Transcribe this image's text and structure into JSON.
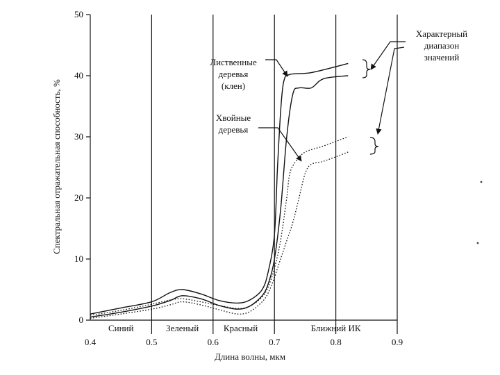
{
  "chart_data": {
    "type": "line",
    "xlabel": "Длина волны, мкм",
    "ylabel": "Спектральная отражательная способность, %",
    "xlim": [
      0.4,
      0.9
    ],
    "ylim": [
      0,
      50
    ],
    "x_ticks": [
      {
        "value": 0.4,
        "label": "0.4"
      },
      {
        "value": 0.5,
        "label": "0.5"
      },
      {
        "value": 0.6,
        "label": "0.6"
      },
      {
        "value": 0.7,
        "label": "0.7"
      },
      {
        "value": 0.8,
        "label": "0.8"
      },
      {
        "value": 0.9,
        "label": "0.9"
      }
    ],
    "y_ticks": [
      {
        "value": 0,
        "label": "0"
      },
      {
        "value": 10,
        "label": "10"
      },
      {
        "value": 20,
        "label": "20"
      },
      {
        "value": 30,
        "label": "30"
      },
      {
        "value": 40,
        "label": "40"
      },
      {
        "value": 50,
        "label": "50"
      }
    ],
    "band_boundaries": [
      0.5,
      0.6,
      0.7,
      0.8,
      0.9
    ],
    "bands": [
      {
        "label": "Синий",
        "center": 0.45
      },
      {
        "label": "Зеленый",
        "center": 0.55
      },
      {
        "label": "Красный",
        "center": 0.645
      },
      {
        "label": "Ближний ИК",
        "center": 0.8
      }
    ],
    "series": [
      {
        "name": "Лиственные деревья (клен) — верхняя граница",
        "style": "solid",
        "points": [
          [
            0.4,
            1.0
          ],
          [
            0.45,
            2.0
          ],
          [
            0.5,
            3.0
          ],
          [
            0.53,
            4.5
          ],
          [
            0.55,
            5.0
          ],
          [
            0.58,
            4.3
          ],
          [
            0.61,
            3.2
          ],
          [
            0.64,
            2.8
          ],
          [
            0.66,
            3.3
          ],
          [
            0.68,
            5.0
          ],
          [
            0.69,
            8.0
          ],
          [
            0.7,
            14.0
          ],
          [
            0.705,
            25.0
          ],
          [
            0.71,
            34.0
          ],
          [
            0.715,
            39.0
          ],
          [
            0.725,
            40.2
          ],
          [
            0.76,
            40.5
          ],
          [
            0.82,
            42.0
          ]
        ]
      },
      {
        "name": "Лиственные деревья (клен) — нижняя граница",
        "style": "solid",
        "points": [
          [
            0.4,
            0.5
          ],
          [
            0.45,
            1.3
          ],
          [
            0.5,
            2.3
          ],
          [
            0.53,
            3.2
          ],
          [
            0.55,
            4.0
          ],
          [
            0.58,
            3.5
          ],
          [
            0.61,
            2.4
          ],
          [
            0.64,
            1.8
          ],
          [
            0.66,
            2.3
          ],
          [
            0.68,
            4.0
          ],
          [
            0.69,
            6.0
          ],
          [
            0.7,
            10.0
          ],
          [
            0.71,
            18.0
          ],
          [
            0.72,
            30.0
          ],
          [
            0.73,
            37.0
          ],
          [
            0.74,
            38.0
          ],
          [
            0.76,
            38.0
          ],
          [
            0.78,
            39.5
          ],
          [
            0.82,
            40.0
          ]
        ]
      },
      {
        "name": "Хвойные деревья — верхняя граница",
        "style": "dotted",
        "points": [
          [
            0.4,
            0.8
          ],
          [
            0.45,
            1.6
          ],
          [
            0.5,
            2.6
          ],
          [
            0.53,
            3.3
          ],
          [
            0.55,
            3.5
          ],
          [
            0.58,
            3.0
          ],
          [
            0.61,
            2.4
          ],
          [
            0.64,
            1.9
          ],
          [
            0.66,
            2.3
          ],
          [
            0.68,
            3.8
          ],
          [
            0.69,
            5.5
          ],
          [
            0.7,
            8.5
          ],
          [
            0.71,
            13.0
          ],
          [
            0.72,
            20.0
          ],
          [
            0.725,
            24.0
          ],
          [
            0.735,
            26.0
          ],
          [
            0.75,
            27.5
          ],
          [
            0.78,
            28.5
          ],
          [
            0.82,
            30.0
          ]
        ]
      },
      {
        "name": "Хвойные деревья — нижняя граница",
        "style": "dotted",
        "points": [
          [
            0.4,
            0.3
          ],
          [
            0.45,
            1.0
          ],
          [
            0.5,
            1.8
          ],
          [
            0.53,
            2.5
          ],
          [
            0.55,
            3.0
          ],
          [
            0.58,
            2.5
          ],
          [
            0.61,
            1.7
          ],
          [
            0.64,
            1.0
          ],
          [
            0.66,
            1.4
          ],
          [
            0.68,
            3.0
          ],
          [
            0.69,
            4.5
          ],
          [
            0.7,
            7.0
          ],
          [
            0.71,
            10.0
          ],
          [
            0.72,
            13.0
          ],
          [
            0.73,
            16.0
          ],
          [
            0.74,
            20.0
          ],
          [
            0.75,
            24.0
          ],
          [
            0.76,
            25.5
          ],
          [
            0.78,
            26.0
          ],
          [
            0.82,
            27.5
          ]
        ]
      }
    ],
    "annotations": {
      "deciduous": [
        "Лиственные",
        "деревья",
        "(клен)"
      ],
      "coniferous": [
        "Хвойные",
        "деревья"
      ],
      "range": [
        "Характерный",
        "диапазон",
        "значений"
      ]
    }
  }
}
